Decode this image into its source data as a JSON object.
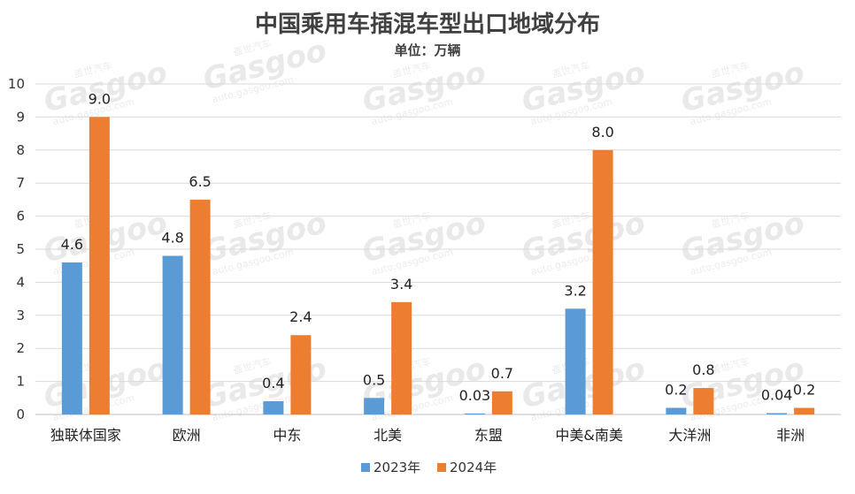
{
  "chart_data": {
    "type": "bar",
    "title": "中国乘用车插混车型出口地域分布",
    "subtitle": "单位：万辆",
    "categories": [
      "独联体国家",
      "欧洲",
      "中东",
      "北美",
      "东盟",
      "中美&南美",
      "大洋洲",
      "非洲"
    ],
    "series": [
      {
        "name": "2023年",
        "color": "#5b9bd5",
        "values": [
          4.6,
          4.8,
          0.4,
          0.5,
          0.03,
          3.2,
          0.2,
          0.04
        ],
        "labels": [
          "4.6",
          "4.8",
          "0.4",
          "0.5",
          "0.03",
          "3.2",
          "0.2",
          "0.04"
        ]
      },
      {
        "name": "2024年",
        "color": "#ed7d31",
        "values": [
          9.0,
          6.5,
          2.4,
          3.4,
          0.7,
          8.0,
          0.8,
          0.2
        ],
        "labels": [
          "9.0",
          "6.5",
          "2.4",
          "3.4",
          "0.7",
          "8.0",
          "0.8",
          "0.2"
        ]
      }
    ],
    "ylim": [
      0,
      10
    ],
    "yticks": [
      "0",
      "1",
      "2",
      "3",
      "4",
      "5",
      "6",
      "7",
      "8",
      "9",
      "10"
    ],
    "grid": true,
    "legend": "bottom"
  },
  "watermark": {
    "brand": "Gasgoo",
    "cn": "盖世汽车",
    "url": "auto.gasgoo.com"
  }
}
